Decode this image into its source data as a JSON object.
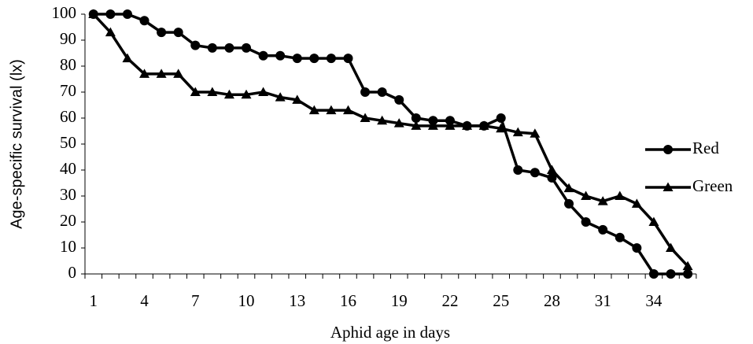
{
  "chart_data": {
    "type": "line",
    "xlabel": "Aphid age in days",
    "ylabel": "Age-specific survival (lx)",
    "categories": [
      "1",
      null,
      null,
      "4",
      null,
      null,
      "7",
      null,
      null,
      "10",
      null,
      null,
      "13",
      null,
      null,
      "16",
      null,
      null,
      "19",
      null,
      null,
      "22",
      null,
      null,
      "25",
      null,
      null,
      "28",
      null,
      null,
      "31",
      null,
      null,
      "34",
      null,
      null
    ],
    "series": [
      {
        "name": "Red",
        "color": "#000000",
        "marker": "circle",
        "values": [
          100,
          100,
          100,
          97.5,
          93,
          93,
          88,
          87,
          87,
          87,
          84,
          84,
          83,
          83,
          83,
          83,
          70,
          70,
          67,
          60,
          59,
          59,
          57,
          57,
          60,
          40,
          39,
          37,
          27,
          20,
          17,
          14,
          10,
          0,
          0,
          0
        ]
      },
      {
        "name": "Green",
        "color": "#000000",
        "marker": "triangle",
        "values": [
          100,
          93,
          83,
          77,
          77,
          77,
          70,
          70,
          69,
          69,
          70,
          68,
          67,
          63,
          63,
          63,
          60,
          59,
          58,
          57,
          57,
          57,
          57,
          57,
          56,
          54.5,
          54,
          40,
          33,
          30,
          28,
          30,
          27,
          20,
          10,
          3
        ]
      }
    ],
    "ylim": [
      0,
      100
    ],
    "yticks": [
      0,
      10,
      20,
      30,
      40,
      50,
      60,
      70,
      80,
      90,
      100
    ],
    "grid": false,
    "legend": "right"
  }
}
